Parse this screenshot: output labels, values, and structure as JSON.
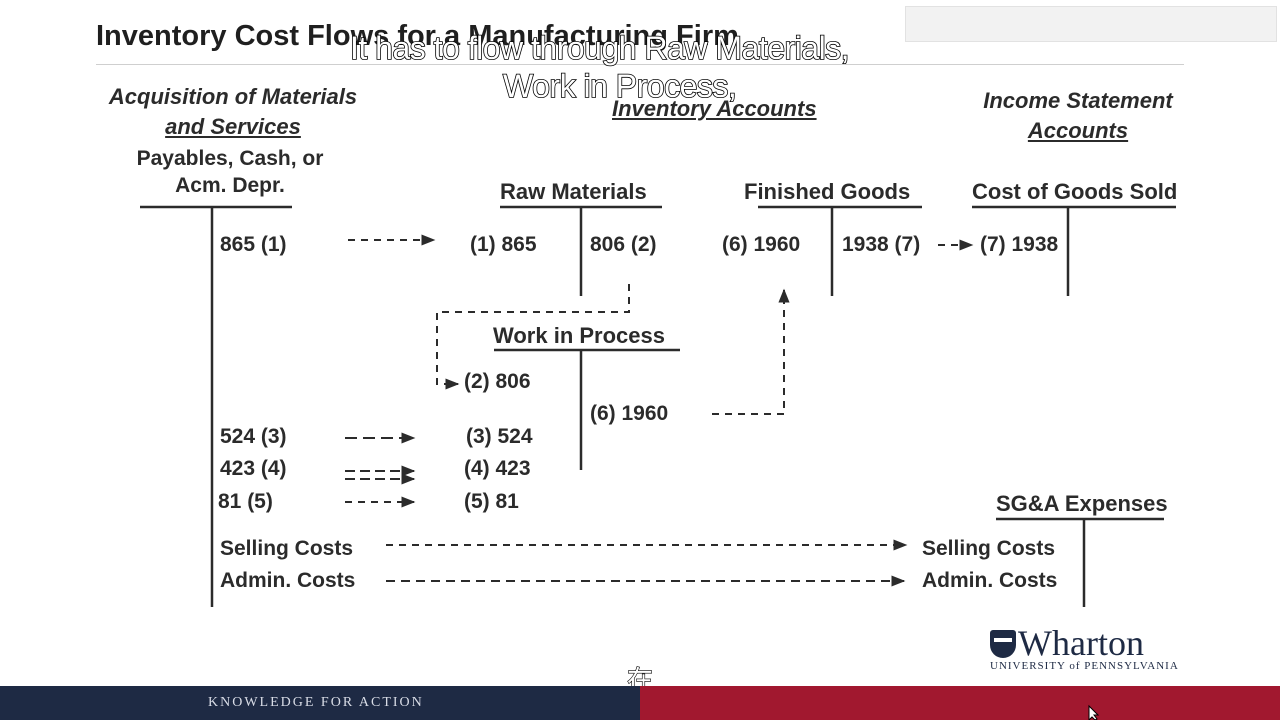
{
  "slide": {
    "title": "Inventory Cost Flows for a Manufacturing Firm",
    "subtitle_overlay_line1": "It has to flow through Raw Materials,",
    "subtitle_overlay_line2": "Work in Process,",
    "cjk_overlay": "在"
  },
  "headers": {
    "acquisition_line1": "Acquisition of Materials",
    "acquisition_line2": "and Services",
    "inventory": "Inventory Accounts",
    "income_line1": "Income Statement",
    "income_line2": "Accounts"
  },
  "accounts": {
    "payables_line1": "Payables, Cash, or",
    "payables_line2": "Acm. Depr.",
    "raw_materials": "Raw Materials",
    "finished_goods": "Finished Goods",
    "cogs": "Cost of Goods Sold",
    "wip": "Work in Process",
    "sga": "SG&A Expenses"
  },
  "entries": {
    "pay_865": "865  (1)",
    "pay_524": "524  (3)",
    "pay_423": "423  (4)",
    "pay_81": "81    (5)",
    "pay_selling": "Selling Costs",
    "pay_admin": "Admin. Costs",
    "rm_debit": "(1)  865",
    "rm_credit": "806 (2)",
    "fg_debit": "(6)  1960",
    "fg_credit": "1938  (7)",
    "cogs_debit": "(7) 1938",
    "wip_806": "(2)  806",
    "wip_524": "(3)  524",
    "wip_423": "(4)  423",
    "wip_81": "(5)    81",
    "wip_credit": "(6)  1960",
    "sga_selling": "Selling Costs",
    "sga_admin": "Admin. Costs"
  },
  "footer": {
    "tagline": "KNOWLEDGE FOR ACTION",
    "logo_name": "Wharton",
    "logo_sub": "UNIVERSITY of PENNSYLVANIA"
  },
  "colors": {
    "footer_navy": "#1e2a44",
    "footer_red": "#a1182f"
  }
}
